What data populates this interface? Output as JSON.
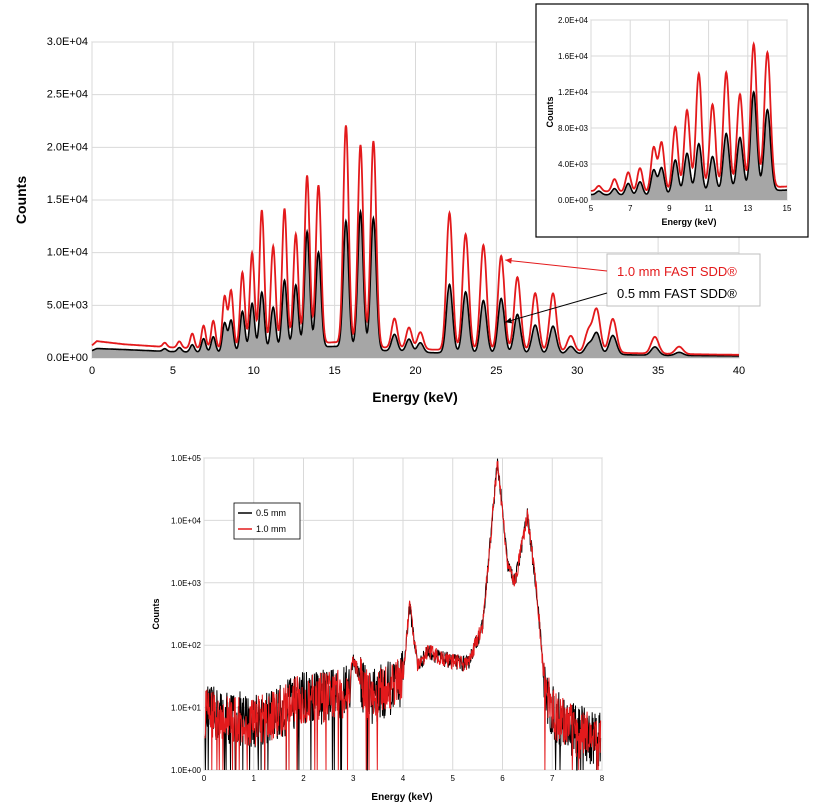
{
  "colors": {
    "red": "#e31a1c",
    "black": "#000000",
    "fill": "#a6a6a6",
    "grid": "#d9d9d9"
  },
  "chart_data": [
    {
      "id": "main",
      "type": "area",
      "title": "",
      "xlabel": "Energy (keV)",
      "ylabel": "Counts",
      "xlim": [
        0,
        40
      ],
      "ylim": [
        0,
        30000
      ],
      "xticks": [
        "0",
        "5",
        "10",
        "15",
        "20",
        "25",
        "30",
        "35",
        "40"
      ],
      "yticks": [
        "0.0E+00",
        "5.0E+03",
        "1.0E+04",
        "1.5E+04",
        "2.0E+04",
        "2.5E+04",
        "3.0E+04"
      ],
      "baseline": {
        "x": [
          0,
          0.3,
          2,
          5,
          8,
          12,
          15,
          18,
          21,
          25,
          30,
          35,
          40
        ],
        "red": [
          1200,
          1600,
          1300,
          1000,
          800,
          1200,
          1500,
          1000,
          800,
          700,
          600,
          400,
          300
        ],
        "black": [
          700,
          900,
          800,
          600,
          500,
          900,
          1100,
          700,
          500,
          450,
          400,
          250,
          200
        ]
      },
      "peaks": [
        {
          "x": 4.5,
          "red": 400,
          "black": 250
        },
        {
          "x": 5.4,
          "red": 600,
          "black": 400
        },
        {
          "x": 6.2,
          "red": 1400,
          "black": 700
        },
        {
          "x": 6.9,
          "red": 2200,
          "black": 1300
        },
        {
          "x": 7.5,
          "red": 2700,
          "black": 1500
        },
        {
          "x": 8.2,
          "red": 5000,
          "black": 2800
        },
        {
          "x": 8.6,
          "red": 5500,
          "black": 3000
        },
        {
          "x": 9.3,
          "red": 7200,
          "black": 3800
        },
        {
          "x": 9.9,
          "red": 9000,
          "black": 4500
        },
        {
          "x": 10.5,
          "red": 13000,
          "black": 5500
        },
        {
          "x": 11.2,
          "red": 9500,
          "black": 4000
        },
        {
          "x": 11.9,
          "red": 13000,
          "black": 6500
        },
        {
          "x": 12.6,
          "red": 10500,
          "black": 6000
        },
        {
          "x": 13.3,
          "red": 16000,
          "black": 11000
        },
        {
          "x": 14.0,
          "red": 15000,
          "black": 9000
        },
        {
          "x": 15.7,
          "red": 20700,
          "black": 12000
        },
        {
          "x": 16.6,
          "red": 19000,
          "black": 13000
        },
        {
          "x": 17.4,
          "red": 19500,
          "black": 12500
        },
        {
          "x": 18.7,
          "red": 2800,
          "black": 1600
        },
        {
          "x": 19.6,
          "red": 2000,
          "black": 1200
        },
        {
          "x": 20.3,
          "red": 1600,
          "black": 900
        },
        {
          "x": 22.1,
          "red": 13000,
          "black": 6500
        },
        {
          "x": 23.1,
          "red": 11000,
          "black": 5800
        },
        {
          "x": 24.2,
          "red": 10000,
          "black": 5000
        },
        {
          "x": 25.3,
          "red": 9000,
          "black": 5200
        },
        {
          "x": 26.3,
          "red": 7000,
          "black": 3700
        },
        {
          "x": 27.4,
          "red": 5500,
          "black": 2700
        },
        {
          "x": 28.5,
          "red": 5500,
          "black": 2600
        },
        {
          "x": 29.6,
          "red": 1500,
          "black": 700
        },
        {
          "x": 30.7,
          "red": 2000,
          "black": 900
        },
        {
          "x": 31.2,
          "red": 4000,
          "black": 2000
        },
        {
          "x": 32.2,
          "red": 3200,
          "black": 1800
        },
        {
          "x": 34.8,
          "red": 1600,
          "black": 800
        },
        {
          "x": 36.3,
          "red": 700,
          "black": 300
        }
      ],
      "annotations": [
        {
          "text": "1.0 mm FAST SDD®",
          "color": "#e31a1c",
          "target_x": 25.3,
          "target_y": 9300
        },
        {
          "text": "0.5 mm FAST SDD®",
          "color": "#000000",
          "target_x": 25.3,
          "target_y": 3400
        }
      ]
    },
    {
      "id": "inset",
      "type": "area",
      "title": "",
      "xlabel": "Energy (keV)",
      "ylabel": "Counts",
      "xlim": [
        5,
        15
      ],
      "ylim": [
        0,
        20000
      ],
      "xticks": [
        "5",
        "7",
        "9",
        "11",
        "13",
        "15"
      ],
      "yticks": [
        "0.0E+00",
        "4.0E+03",
        "8.0E+03",
        "1.2E+04",
        "1.6E+04",
        "2.0E+04"
      ]
    },
    {
      "id": "log",
      "type": "line",
      "title": "",
      "xlabel": "Energy (keV)",
      "ylabel": "Counts",
      "xlim": [
        0,
        8
      ],
      "ylim": [
        1,
        100000
      ],
      "yscale": "log",
      "xticks": [
        "0",
        "1",
        "2",
        "3",
        "4",
        "5",
        "6",
        "7",
        "8"
      ],
      "yticks": [
        "1.0E+00",
        "1.0E+01",
        "1.0E+02",
        "1.0E+03",
        "1.0E+04",
        "1.0E+05"
      ],
      "legend": {
        "position": "top-left",
        "entries": [
          {
            "name": "0.5 mm",
            "color": "#000000"
          },
          {
            "name": "1.0 mm",
            "color": "#e31a1c"
          }
        ]
      },
      "series_points": {
        "x": [
          0.1,
          0.5,
          1.0,
          1.5,
          1.8,
          2.0,
          2.5,
          2.9,
          3.0,
          3.3,
          3.7,
          4.0,
          4.13,
          4.3,
          4.5,
          4.8,
          5.0,
          5.3,
          5.6,
          5.9,
          6.1,
          6.25,
          6.5,
          6.7,
          6.85,
          7.0,
          7.5,
          8.0
        ],
        "y": [
          8,
          7,
          6,
          8,
          12,
          14,
          15,
          18,
          60,
          14,
          20,
          30,
          450,
          45,
          80,
          60,
          55,
          50,
          200,
          90000,
          2000,
          1000,
          12000,
          600,
          20,
          8,
          4,
          3
        ]
      }
    }
  ]
}
